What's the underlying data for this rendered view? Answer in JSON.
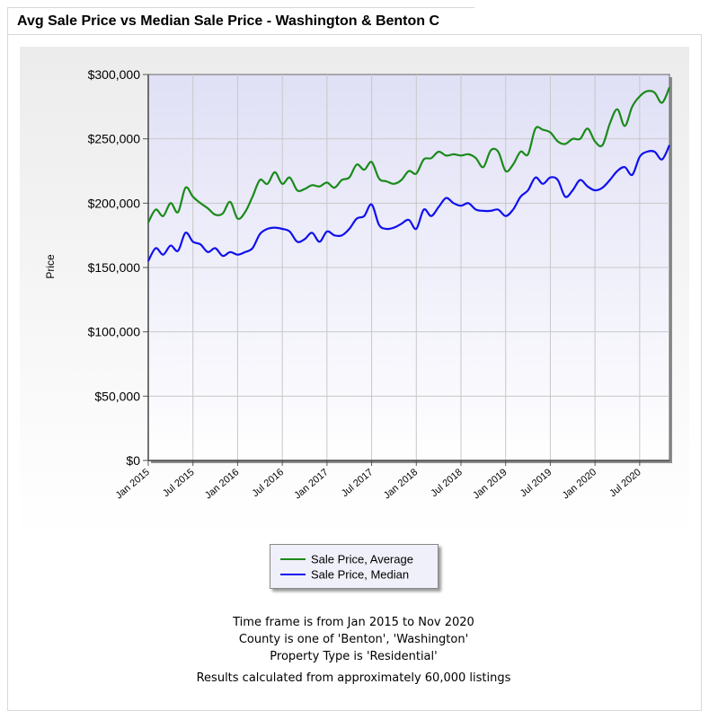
{
  "header": {
    "title": "Avg Sale Price vs Median Sale Price - Washington & Benton C"
  },
  "chart_data": {
    "type": "line",
    "title": "Avg Sale Price vs Median Sale Price - Washington & Benton C",
    "xlabel": "",
    "ylabel": "Price",
    "ylim": [
      0,
      300000
    ],
    "xlim": [
      "2015-01",
      "2020-11"
    ],
    "y_ticks": [
      0,
      50000,
      100000,
      150000,
      200000,
      250000,
      300000
    ],
    "y_tick_labels": [
      "$0",
      "$50,000",
      "$100,000",
      "$150,000",
      "$200,000",
      "$250,000",
      "$300,000"
    ],
    "x_ticks": [
      "2015-01",
      "2015-07",
      "2016-01",
      "2016-07",
      "2017-01",
      "2017-07",
      "2018-01",
      "2018-07",
      "2019-01",
      "2019-07",
      "2020-01",
      "2020-07"
    ],
    "x_tick_labels": [
      "Jan 2015",
      "Jul 2015",
      "Jan 2016",
      "Jul 2016",
      "Jan 2017",
      "Jul 2017",
      "Jan 2018",
      "Jul 2018",
      "Jan 2019",
      "Jul 2019",
      "Jan 2020",
      "Jul 2020"
    ],
    "grid": true,
    "legend_position": "bottom-center",
    "x": [
      "2015-01",
      "2015-02",
      "2015-03",
      "2015-04",
      "2015-05",
      "2015-06",
      "2015-07",
      "2015-08",
      "2015-09",
      "2015-10",
      "2015-11",
      "2015-12",
      "2016-01",
      "2016-02",
      "2016-03",
      "2016-04",
      "2016-05",
      "2016-06",
      "2016-07",
      "2016-08",
      "2016-09",
      "2016-10",
      "2016-11",
      "2016-12",
      "2017-01",
      "2017-02",
      "2017-03",
      "2017-04",
      "2017-05",
      "2017-06",
      "2017-07",
      "2017-08",
      "2017-09",
      "2017-10",
      "2017-11",
      "2017-12",
      "2018-01",
      "2018-02",
      "2018-03",
      "2018-04",
      "2018-05",
      "2018-06",
      "2018-07",
      "2018-08",
      "2018-09",
      "2018-10",
      "2018-11",
      "2018-12",
      "2019-01",
      "2019-02",
      "2019-03",
      "2019-04",
      "2019-05",
      "2019-06",
      "2019-07",
      "2019-08",
      "2019-09",
      "2019-10",
      "2019-11",
      "2019-12",
      "2020-01",
      "2020-02",
      "2020-03",
      "2020-04",
      "2020-05",
      "2020-06",
      "2020-07",
      "2020-08",
      "2020-09",
      "2020-10",
      "2020-11"
    ],
    "series": [
      {
        "name": "Sale Price, Average",
        "color": "#1a8a1a",
        "values": [
          185000,
          195000,
          190000,
          200000,
          193000,
          212000,
          205000,
          200000,
          196000,
          191000,
          192000,
          201000,
          188000,
          193000,
          205000,
          218000,
          215000,
          224000,
          215000,
          220000,
          210000,
          211000,
          214000,
          213000,
          216000,
          212000,
          218000,
          220000,
          230000,
          226000,
          232000,
          219000,
          217000,
          215000,
          218000,
          225000,
          223000,
          234000,
          235000,
          240000,
          237000,
          238000,
          237000,
          238000,
          235000,
          228000,
          241000,
          240000,
          225000,
          230000,
          240000,
          238000,
          258000,
          257000,
          255000,
          248000,
          246000,
          250000,
          250000,
          258000,
          248000,
          245000,
          262000,
          273000,
          260000,
          275000,
          283000,
          287000,
          286000,
          278000,
          290000
        ]
      },
      {
        "name": "Sale Price, Median",
        "color": "#1010ee",
        "values": [
          155000,
          165000,
          160000,
          167000,
          163000,
          177000,
          170000,
          168000,
          162000,
          165000,
          159000,
          162000,
          160000,
          162000,
          165000,
          176000,
          180000,
          181000,
          180000,
          178000,
          170000,
          172000,
          177000,
          170000,
          178000,
          175000,
          175000,
          180000,
          188000,
          190000,
          199000,
          183000,
          180000,
          181000,
          184000,
          187000,
          180000,
          195000,
          190000,
          197000,
          204000,
          200000,
          198000,
          200000,
          195000,
          194000,
          194000,
          195000,
          190000,
          195000,
          205000,
          210000,
          220000,
          215000,
          220000,
          218000,
          205000,
          210000,
          218000,
          213000,
          210000,
          212000,
          218000,
          225000,
          228000,
          222000,
          236000,
          240000,
          240000,
          234000,
          245000
        ]
      }
    ]
  },
  "notes": [
    "Time frame is from Jan 2015 to Nov 2020",
    "County is one of 'Benton', 'Washington'",
    "Property Type is 'Residential'",
    "Results calculated from approximately 60,000 listings"
  ]
}
